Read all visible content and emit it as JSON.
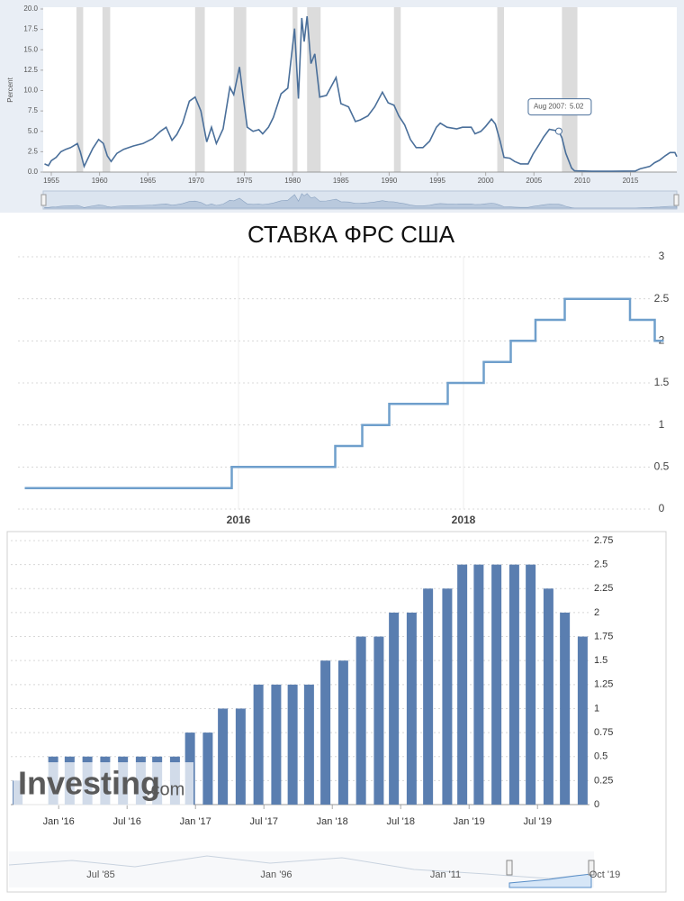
{
  "chart_data": [
    {
      "type": "line",
      "y_label": "Percent",
      "color": "#4a6f9a",
      "x": [
        1954.3,
        1954.7,
        1955.0,
        1955.5,
        1956.0,
        1956.5,
        1957.0,
        1957.7,
        1958.0,
        1958.4,
        1958.8,
        1959.3,
        1959.9,
        1960.4,
        1960.8,
        1961.2,
        1961.8,
        1962.5,
        1963.5,
        1964.5,
        1965.5,
        1966.3,
        1966.9,
        1967.5,
        1968.0,
        1968.6,
        1969.3,
        1969.9,
        1970.5,
        1971.1,
        1971.6,
        1972.1,
        1972.8,
        1973.5,
        1973.9,
        1974.5,
        1974.9,
        1975.3,
        1975.9,
        1976.5,
        1976.9,
        1977.5,
        1978.0,
        1978.8,
        1979.5,
        1980.2,
        1980.6,
        1980.95,
        1981.2,
        1981.5,
        1981.9,
        1982.3,
        1982.8,
        1983.5,
        1984.5,
        1985.0,
        1985.8,
        1986.5,
        1987.0,
        1987.8,
        1988.5,
        1989.3,
        1989.9,
        1990.5,
        1991.0,
        1991.6,
        1992.2,
        1992.8,
        1993.5,
        1994.2,
        1994.9,
        1995.3,
        1996.0,
        1997.0,
        1997.6,
        1998.5,
        1998.9,
        1999.5,
        2000.0,
        2000.6,
        2001.0,
        2001.5,
        2001.9,
        2002.5,
        2003.0,
        2003.6,
        2004.4,
        2004.9,
        2005.5,
        2006.0,
        2006.6,
        2007.58,
        2007.9,
        2008.3,
        2008.9,
        2009.2,
        2011.0,
        2013.0,
        2015.5,
        2016.0,
        2017.0,
        2017.5,
        2018.0,
        2018.6,
        2019.1,
        2019.6,
        2019.8
      ],
      "values": [
        1.0,
        0.8,
        1.4,
        1.8,
        2.5,
        2.8,
        3.0,
        3.5,
        2.5,
        0.7,
        1.7,
        2.9,
        4.0,
        3.5,
        2.0,
        1.3,
        2.3,
        2.8,
        3.2,
        3.5,
        4.1,
        5.0,
        5.5,
        3.9,
        4.6,
        6.0,
        8.7,
        9.2,
        7.5,
        3.7,
        5.5,
        3.5,
        5.3,
        10.4,
        9.5,
        12.9,
        9.0,
        5.5,
        5.0,
        5.2,
        4.7,
        5.5,
        6.7,
        9.6,
        10.3,
        17.6,
        9.0,
        18.9,
        16.0,
        19.1,
        13.3,
        14.5,
        9.2,
        9.4,
        11.6,
        8.4,
        8.0,
        6.2,
        6.4,
        6.9,
        8.0,
        9.8,
        8.5,
        8.2,
        6.9,
        5.8,
        4.0,
        3.0,
        3.0,
        3.8,
        5.5,
        6.0,
        5.5,
        5.3,
        5.5,
        5.5,
        4.7,
        5.0,
        5.6,
        6.5,
        5.9,
        3.8,
        1.8,
        1.7,
        1.3,
        1.0,
        1.0,
        2.2,
        3.3,
        4.3,
        5.25,
        5.02,
        4.2,
        2.3,
        0.5,
        0.15,
        0.1,
        0.1,
        0.13,
        0.4,
        0.7,
        1.15,
        1.45,
        2.0,
        2.4,
        2.4,
        1.9
      ],
      "xlim": [
        1954.16,
        2019.8
      ],
      "ylim": [
        0,
        20
      ],
      "xticks": [
        1955,
        1960,
        1965,
        1970,
        1975,
        1980,
        1985,
        1990,
        1995,
        2000,
        2005,
        2010,
        2015
      ],
      "yticks": [
        {
          "value": 0,
          "label": "0.0"
        },
        2.5,
        {
          "value": 5,
          "label": "5.0"
        },
        7.5,
        {
          "value": 10,
          "label": "10.0"
        },
        12.5,
        {
          "value": 15,
          "label": "15.0"
        },
        17.5,
        {
          "value": 20,
          "label": "20.0"
        }
      ],
      "shaded": [
        [
          1957.6,
          1958.3
        ],
        [
          1960.3,
          1961.1
        ],
        [
          1969.9,
          1970.9
        ],
        [
          1973.9,
          1975.2
        ],
        [
          1980.0,
          1980.5
        ],
        [
          1981.5,
          1982.9
        ],
        [
          1990.5,
          1991.2
        ],
        [
          2001.2,
          2001.9
        ],
        [
          2007.9,
          2009.5
        ]
      ],
      "annotation": {
        "label": "Aug 2007:",
        "x": 2007.58,
        "value": 5.02
      }
    },
    {
      "type": "line",
      "step": true,
      "title": "СТАВКА ФРС США",
      "color": "#6f9fcc",
      "x": [
        2014.1,
        2015.94,
        2016.86,
        2017.1,
        2017.34,
        2017.86,
        2018.18,
        2018.42,
        2018.64,
        2018.9,
        2019.48,
        2019.7,
        2019.78
      ],
      "values": [
        0.25,
        0.5,
        0.75,
        1.0,
        1.25,
        1.5,
        1.75,
        2.0,
        2.25,
        2.5,
        2.25,
        2.0,
        2.0
      ],
      "xlim": [
        2014,
        2019.8
      ],
      "ylim": [
        0,
        3
      ],
      "xticks": [
        2016,
        2018
      ],
      "yticks": [
        0,
        0.5,
        1,
        1.5,
        2,
        2.5,
        3
      ],
      "grid": true
    },
    {
      "type": "bar",
      "color": "#5a7eb0",
      "x": [
        2015.7,
        2015.96,
        2016.08,
        2016.21,
        2016.34,
        2016.47,
        2016.6,
        2016.72,
        2016.85,
        2016.96,
        2017.09,
        2017.2,
        2017.33,
        2017.46,
        2017.59,
        2017.71,
        2017.83,
        2017.95,
        2018.08,
        2018.21,
        2018.34,
        2018.45,
        2018.58,
        2018.7,
        2018.84,
        2018.95,
        2019.07,
        2019.2,
        2019.33,
        2019.45,
        2019.58,
        2019.7,
        2019.83
      ],
      "values": [
        0.25,
        0.5,
        0.5,
        0.5,
        0.5,
        0.5,
        0.5,
        0.5,
        0.5,
        0.75,
        0.75,
        1,
        1,
        1.25,
        1.25,
        1.25,
        1.25,
        1.5,
        1.5,
        1.75,
        1.75,
        2,
        2,
        2.25,
        2.25,
        2.5,
        2.5,
        2.5,
        2.5,
        2.5,
        2.25,
        2,
        1.75
      ],
      "xlim": [
        2015.65,
        2019.88
      ],
      "ylim": [
        0,
        2.75
      ],
      "xticks": [
        {
          "value": 2016,
          "label": "Jan '16"
        },
        {
          "value": 2016.5,
          "label": "Jul '16"
        },
        {
          "value": 2017,
          "label": "Jan '17"
        },
        {
          "value": 2017.5,
          "label": "Jul '17"
        },
        {
          "value": 2018,
          "label": "Jan '18"
        },
        {
          "value": 2018.5,
          "label": "Jul '18"
        },
        {
          "value": 2019,
          "label": "Jan '19"
        },
        {
          "value": 2019.5,
          "label": "Jul '19"
        }
      ],
      "yticks": [
        0,
        0.25,
        0.5,
        0.75,
        1,
        1.25,
        1.5,
        1.75,
        2,
        2.25,
        2.5,
        2.75
      ],
      "grid": true,
      "watermark": {
        "brand": "Investing",
        "suffix": ".com"
      },
      "navigator_labels": [
        "Jul '85",
        "Jan '96",
        "Jan '11",
        "Oct '19"
      ]
    }
  ]
}
